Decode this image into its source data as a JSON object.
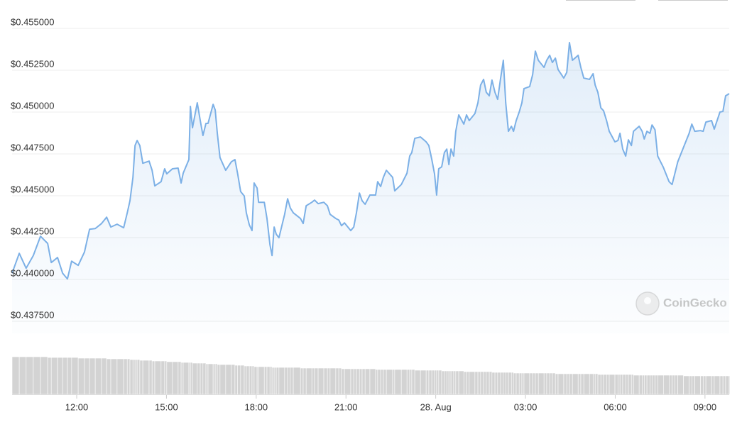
{
  "chart_data": {
    "type": "line",
    "color": "#7cb0e6",
    "watermark": "CoinGecko",
    "grid": true,
    "xlim": [
      9.84,
      33.81
    ],
    "xticks": [
      {
        "value": 12,
        "label": "12:00"
      },
      {
        "value": 15,
        "label": "15:00"
      },
      {
        "value": 18,
        "label": "18:00"
      },
      {
        "value": 21,
        "label": "21:00"
      },
      {
        "value": 24,
        "label": "28. Aug"
      },
      {
        "value": 27,
        "label": "03:00"
      },
      {
        "value": 30,
        "label": "06:00"
      },
      {
        "value": 33,
        "label": "09:00"
      }
    ],
    "ylim": [
      0.43678,
      0.45627
    ],
    "yticks": [
      {
        "value": 0.4375,
        "label": "$0.437500"
      },
      {
        "value": 0.44,
        "label": "$0.440000"
      },
      {
        "value": 0.4425,
        "label": "$0.442500"
      },
      {
        "value": 0.445,
        "label": "$0.445000"
      },
      {
        "value": 0.4475,
        "label": "$0.447500"
      },
      {
        "value": 0.45,
        "label": "$0.450000"
      },
      {
        "value": 0.4525,
        "label": "$0.452500"
      },
      {
        "value": 0.455,
        "label": "$0.455000"
      }
    ],
    "x": [
      9.84,
      10.08,
      10.31,
      10.55,
      10.79,
      11.03,
      11.15,
      11.36,
      11.53,
      11.69,
      11.83,
      12.05,
      12.26,
      12.43,
      12.62,
      12.83,
      13.0,
      13.14,
      13.35,
      13.57,
      13.69,
      13.78,
      13.88,
      13.95,
      14.02,
      14.11,
      14.21,
      14.42,
      14.52,
      14.61,
      14.82,
      14.94,
      15.01,
      15.2,
      15.39,
      15.49,
      15.56,
      15.75,
      15.8,
      15.87,
      16.03,
      16.13,
      16.22,
      16.32,
      16.39,
      16.56,
      16.63,
      16.7,
      16.79,
      16.98,
      17.17,
      17.29,
      17.38,
      17.48,
      17.6,
      17.67,
      17.77,
      17.86,
      17.93,
      18.03,
      18.08,
      18.27,
      18.36,
      18.46,
      18.53,
      18.6,
      18.67,
      18.76,
      18.95,
      19.05,
      19.14,
      19.24,
      19.48,
      19.57,
      19.67,
      19.86,
      19.95,
      20.07,
      20.26,
      20.38,
      20.47,
      20.66,
      20.76,
      20.85,
      20.95,
      21.16,
      21.26,
      21.35,
      21.45,
      21.54,
      21.64,
      21.8,
      21.99,
      22.06,
      22.16,
      22.25,
      22.35,
      22.56,
      22.63,
      22.85,
      23.04,
      23.13,
      23.2,
      23.3,
      23.49,
      23.68,
      23.77,
      23.87,
      23.96,
      24.03,
      24.1,
      24.2,
      24.29,
      24.37,
      24.44,
      24.51,
      24.6,
      24.67,
      24.77,
      24.94,
      25.03,
      25.12,
      25.31,
      25.41,
      25.5,
      25.6,
      25.69,
      25.79,
      25.88,
      25.98,
      26.07,
      26.17,
      26.26,
      26.34,
      26.43,
      26.53,
      26.6,
      26.69,
      26.79,
      26.88,
      26.95,
      27.14,
      27.24,
      27.33,
      27.43,
      27.62,
      27.71,
      27.81,
      27.9,
      28.0,
      28.09,
      28.28,
      28.38,
      28.47,
      28.57,
      28.76,
      28.85,
      28.95,
      29.14,
      29.26,
      29.33,
      29.42,
      29.52,
      29.61,
      29.71,
      29.8,
      29.99,
      30.09,
      30.16,
      30.25,
      30.35,
      30.44,
      30.54,
      30.61,
      30.8,
      30.9,
      30.97,
      31.06,
      31.16,
      31.23,
      31.33,
      31.42,
      31.61,
      31.8,
      31.9,
      31.99,
      32.09,
      32.28,
      32.47,
      32.56,
      32.66,
      32.85,
      32.94,
      33.03,
      33.22,
      33.31,
      33.5,
      33.6,
      33.69,
      33.81
    ],
    "values": [
      0.44037,
      0.44156,
      0.44067,
      0.44143,
      0.44258,
      0.44215,
      0.44101,
      0.44131,
      0.44037,
      0.44003,
      0.44109,
      0.44084,
      0.44164,
      0.443,
      0.44304,
      0.44334,
      0.44372,
      0.44313,
      0.4433,
      0.44309,
      0.44398,
      0.4447,
      0.4461,
      0.448,
      0.4483,
      0.448,
      0.44694,
      0.44707,
      0.44652,
      0.44559,
      0.44584,
      0.44661,
      0.44631,
      0.44661,
      0.44665,
      0.44576,
      0.44635,
      0.44716,
      0.45034,
      0.44906,
      0.45055,
      0.44949,
      0.4486,
      0.44932,
      0.44932,
      0.45046,
      0.45012,
      0.44873,
      0.44728,
      0.44652,
      0.44703,
      0.44716,
      0.44631,
      0.44525,
      0.44499,
      0.44398,
      0.44326,
      0.44292,
      0.44576,
      0.44546,
      0.44461,
      0.44461,
      0.44364,
      0.44207,
      0.44143,
      0.44313,
      0.4427,
      0.44249,
      0.44389,
      0.44482,
      0.44427,
      0.44398,
      0.44364,
      0.44334,
      0.4444,
      0.44461,
      0.44474,
      0.44453,
      0.44461,
      0.4444,
      0.44389,
      0.44364,
      0.44355,
      0.44321,
      0.44338,
      0.44292,
      0.44313,
      0.44398,
      0.44516,
      0.4447,
      0.44449,
      0.44504,
      0.44504,
      0.44584,
      0.44555,
      0.4461,
      0.44652,
      0.4461,
      0.44529,
      0.44567,
      0.44635,
      0.44737,
      0.44758,
      0.44843,
      0.44851,
      0.44822,
      0.448,
      0.44716,
      0.44631,
      0.44504,
      0.44661,
      0.44673,
      0.44758,
      0.44779,
      0.44686,
      0.44779,
      0.44737,
      0.44885,
      0.44983,
      0.44928,
      0.44983,
      0.44949,
      0.44991,
      0.45055,
      0.45161,
      0.45195,
      0.45118,
      0.45097,
      0.45191,
      0.45118,
      0.45076,
      0.45203,
      0.45309,
      0.45055,
      0.44885,
      0.44915,
      0.44885,
      0.44949,
      0.45,
      0.45055,
      0.4514,
      0.45152,
      0.45224,
      0.45364,
      0.45309,
      0.45267,
      0.45309,
      0.45339,
      0.45296,
      0.45322,
      0.45254,
      0.45203,
      0.45237,
      0.45415,
      0.45309,
      0.45339,
      0.45267,
      0.45203,
      0.45195,
      0.45229,
      0.45161,
      0.45118,
      0.45025,
      0.45008,
      0.44949,
      0.44885,
      0.44822,
      0.4483,
      0.44873,
      0.44779,
      0.44737,
      0.44834,
      0.448,
      0.44885,
      0.44915,
      0.44885,
      0.44839,
      0.44885,
      0.44873,
      0.44923,
      0.44894,
      0.44737,
      0.44669,
      0.44584,
      0.44567,
      0.44631,
      0.44703,
      0.44788,
      0.44873,
      0.44928,
      0.44885,
      0.44889,
      0.44885,
      0.4494,
      0.44949,
      0.44898,
      0.45,
      0.45004,
      0.45097,
      0.4511
    ],
    "volume": {
      "color": "#d3d3d3",
      "values": [
        53,
        53,
        53,
        53,
        53,
        52,
        52,
        52,
        52,
        52,
        52,
        51,
        51,
        51,
        51,
        51,
        50,
        50,
        50,
        50,
        50,
        49,
        49,
        49,
        49,
        48,
        48,
        48,
        47,
        47,
        47,
        47,
        46,
        46,
        46,
        45,
        45,
        45,
        45,
        44,
        44,
        44,
        44,
        43,
        43,
        43,
        43,
        42,
        42,
        42,
        42,
        41,
        41,
        41,
        40,
        40,
        40,
        40,
        39,
        39,
        39,
        39,
        39,
        39,
        38,
        38,
        38,
        38,
        38,
        38,
        38,
        38,
        37,
        37,
        37,
        37,
        37,
        37,
        37,
        37,
        37,
        37,
        37,
        36,
        36,
        36,
        36,
        36,
        36,
        36,
        36,
        36,
        35,
        35,
        35,
        35,
        35,
        35,
        35,
        35,
        35,
        35,
        35,
        34,
        34,
        34,
        34,
        34,
        34,
        34,
        34,
        33,
        33,
        33,
        33,
        33,
        33,
        33,
        33,
        32,
        32,
        32,
        32,
        32,
        32,
        32,
        32,
        32,
        31,
        31,
        31,
        31,
        31,
        31,
        31,
        31,
        30,
        30,
        30,
        30,
        30,
        30,
        30,
        30,
        30,
        30,
        30,
        30,
        30,
        29,
        29,
        29,
        29,
        29,
        29,
        29,
        29,
        29,
        29,
        29,
        29,
        28,
        28,
        28,
        28,
        28,
        28,
        28,
        28,
        28,
        28,
        28,
        28,
        27,
        27,
        27,
        27,
        27,
        27,
        27,
        27,
        27,
        27,
        27,
        27,
        27,
        27,
        26,
        26,
        26,
        26,
        26,
        26,
        26,
        26,
        26,
        26,
        26,
        26,
        26
      ]
    }
  }
}
